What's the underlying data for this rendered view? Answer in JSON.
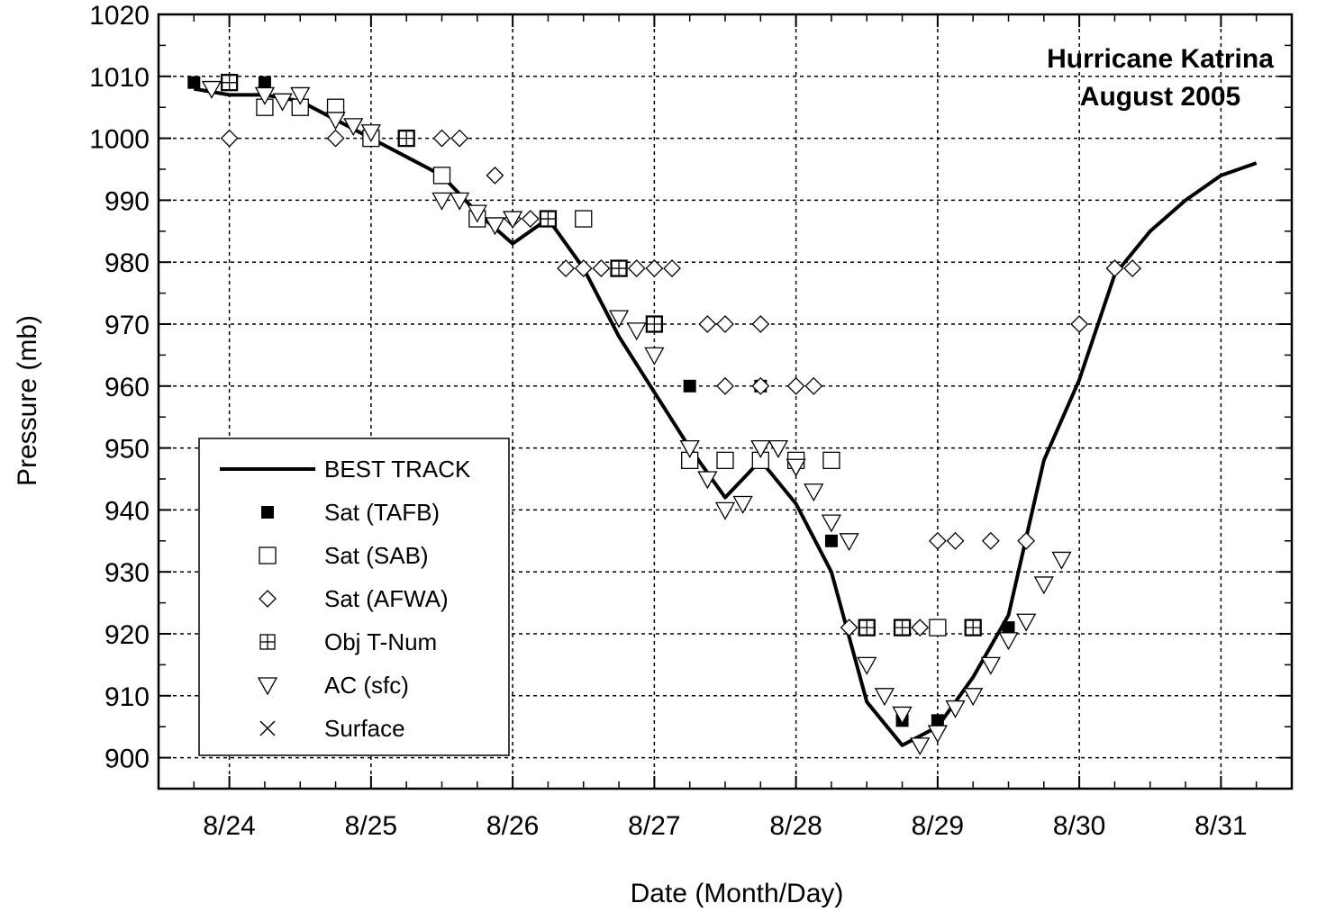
{
  "chart_data": {
    "type": "scatter",
    "title": "Hurricane Katrina",
    "subtitle": "August 2005",
    "xlabel": "Date (Month/Day)",
    "ylabel": "Pressure (mb)",
    "xlim": [
      "8/23 12:00",
      "8/31 12:00"
    ],
    "ylim": [
      895,
      1020
    ],
    "x_tick_labels": [
      "8/24",
      "8/25",
      "8/26",
      "8/27",
      "8/28",
      "8/29",
      "8/30",
      "8/31"
    ],
    "y_tick_labels": [
      "900",
      "910",
      "920",
      "930",
      "940",
      "950",
      "960",
      "970",
      "980",
      "990",
      "1000",
      "1010",
      "1020"
    ],
    "grid": true,
    "legend_position": "bottom-left",
    "series": [
      {
        "name": "BEST TRACK",
        "marker": "line",
        "points": [
          [
            "8/23 18:00",
            1008
          ],
          [
            "8/24 00:00",
            1007
          ],
          [
            "8/24 06:00",
            1007
          ],
          [
            "8/24 12:00",
            1006
          ],
          [
            "8/24 18:00",
            1003
          ],
          [
            "8/25 00:00",
            1000
          ],
          [
            "8/25 06:00",
            997
          ],
          [
            "8/25 12:00",
            994
          ],
          [
            "8/25 18:00",
            988
          ],
          [
            "8/26 00:00",
            983
          ],
          [
            "8/26 06:00",
            987
          ],
          [
            "8/26 12:00",
            979
          ],
          [
            "8/26 18:00",
            968
          ],
          [
            "8/27 00:00",
            959
          ],
          [
            "8/27 06:00",
            950
          ],
          [
            "8/27 12:00",
            942
          ],
          [
            "8/27 18:00",
            948
          ],
          [
            "8/28 00:00",
            941
          ],
          [
            "8/28 06:00",
            930
          ],
          [
            "8/28 12:00",
            909
          ],
          [
            "8/28 18:00",
            902
          ],
          [
            "8/29 00:00",
            905
          ],
          [
            "8/29 06:00",
            913
          ],
          [
            "8/29 12:00",
            923
          ],
          [
            "8/29 18:00",
            948
          ],
          [
            "8/30 00:00",
            961
          ],
          [
            "8/30 06:00",
            978
          ],
          [
            "8/30 12:00",
            985
          ],
          [
            "8/30 18:00",
            990
          ],
          [
            "8/31 00:00",
            994
          ],
          [
            "8/31 06:00",
            996
          ]
        ]
      },
      {
        "name": "Sat (TAFB)",
        "marker": "filled-square",
        "points": [
          [
            "8/23 18:00",
            1009
          ],
          [
            "8/24 00:00",
            1009
          ],
          [
            "8/24 06:00",
            1009
          ],
          [
            "8/25 06:00",
            1000
          ],
          [
            "8/25 18:00",
            987
          ],
          [
            "8/26 06:00",
            987
          ],
          [
            "8/27 00:00",
            970
          ],
          [
            "8/27 06:00",
            960
          ],
          [
            "8/27 18:00",
            960
          ],
          [
            "8/28 06:00",
            935
          ],
          [
            "8/28 12:00",
            921
          ],
          [
            "8/28 18:00",
            906
          ],
          [
            "8/29 00:00",
            906
          ],
          [
            "8/29 06:00",
            921
          ],
          [
            "8/29 12:00",
            921
          ]
        ]
      },
      {
        "name": "Sat (SAB)",
        "marker": "open-square",
        "points": [
          [
            "8/24 00:00",
            1009
          ],
          [
            "8/24 06:00",
            1005
          ],
          [
            "8/24 12:00",
            1005
          ],
          [
            "8/24 18:00",
            1005
          ],
          [
            "8/25 00:00",
            1000
          ],
          [
            "8/25 06:00",
            1000
          ],
          [
            "8/25 12:00",
            994
          ],
          [
            "8/25 18:00",
            987
          ],
          [
            "8/26 06:00",
            987
          ],
          [
            "8/26 12:00",
            987
          ],
          [
            "8/26 18:00",
            979
          ],
          [
            "8/27 00:00",
            970
          ],
          [
            "8/27 06:00",
            948
          ],
          [
            "8/27 12:00",
            948
          ],
          [
            "8/27 18:00",
            948
          ],
          [
            "8/28 00:00",
            948
          ],
          [
            "8/28 06:00",
            948
          ],
          [
            "8/28 12:00",
            921
          ],
          [
            "8/28 18:00",
            921
          ],
          [
            "8/29 00:00",
            921
          ],
          [
            "8/29 06:00",
            921
          ]
        ]
      },
      {
        "name": "Sat (AFWA)",
        "marker": "open-diamond",
        "points": [
          [
            "8/24 00:00",
            1000
          ],
          [
            "8/24 18:00",
            1000
          ],
          [
            "8/25 06:00",
            1000
          ],
          [
            "8/25 12:00",
            1000
          ],
          [
            "8/25 15:00",
            1000
          ],
          [
            "8/25 21:00",
            994
          ],
          [
            "8/26 00:00",
            987
          ],
          [
            "8/26 03:00",
            987
          ],
          [
            "8/26 09:00",
            979
          ],
          [
            "8/26 12:00",
            979
          ],
          [
            "8/26 15:00",
            979
          ],
          [
            "8/26 21:00",
            979
          ],
          [
            "8/27 00:00",
            979
          ],
          [
            "8/27 03:00",
            979
          ],
          [
            "8/27 09:00",
            970
          ],
          [
            "8/27 12:00",
            970
          ],
          [
            "8/27 18:00",
            970
          ],
          [
            "8/27 12:00",
            960
          ],
          [
            "8/27 18:00",
            960
          ],
          [
            "8/28 00:00",
            960
          ],
          [
            "8/28 03:00",
            960
          ],
          [
            "8/28 09:00",
            921
          ],
          [
            "8/28 12:00",
            921
          ],
          [
            "8/28 18:00",
            921
          ],
          [
            "8/28 21:00",
            921
          ],
          [
            "8/29 00:00",
            935
          ],
          [
            "8/29 03:00",
            935
          ],
          [
            "8/29 09:00",
            935
          ],
          [
            "8/29 15:00",
            935
          ],
          [
            "8/30 06:00",
            979
          ],
          [
            "8/30 09:00",
            979
          ],
          [
            "8/30 00:00",
            970
          ]
        ]
      },
      {
        "name": "Obj T-Num",
        "marker": "crossed-square",
        "points": [
          [
            "8/24 00:00",
            1009
          ],
          [
            "8/25 06:00",
            1000
          ],
          [
            "8/26 06:00",
            987
          ],
          [
            "8/26 18:00",
            979
          ],
          [
            "8/27 00:00",
            970
          ],
          [
            "8/28 12:00",
            921
          ],
          [
            "8/28 18:00",
            921
          ],
          [
            "8/29 06:00",
            921
          ]
        ]
      },
      {
        "name": "AC (sfc)",
        "marker": "open-triangle-down",
        "points": [
          [
            "8/23 21:00",
            1008
          ],
          [
            "8/24 06:00",
            1007
          ],
          [
            "8/24 09:00",
            1006
          ],
          [
            "8/24 12:00",
            1007
          ],
          [
            "8/24 18:00",
            1003
          ],
          [
            "8/24 21:00",
            1002
          ],
          [
            "8/25 00:00",
            1001
          ],
          [
            "8/25 12:00",
            990
          ],
          [
            "8/25 15:00",
            990
          ],
          [
            "8/25 18:00",
            988
          ],
          [
            "8/25 21:00",
            986
          ],
          [
            "8/26 00:00",
            987
          ],
          [
            "8/26 18:00",
            971
          ],
          [
            "8/26 21:00",
            969
          ],
          [
            "8/27 00:00",
            965
          ],
          [
            "8/27 06:00",
            950
          ],
          [
            "8/27 09:00",
            945
          ],
          [
            "8/27 12:00",
            940
          ],
          [
            "8/27 15:00",
            941
          ],
          [
            "8/27 18:00",
            950
          ],
          [
            "8/27 21:00",
            950
          ],
          [
            "8/28 00:00",
            947
          ],
          [
            "8/28 03:00",
            943
          ],
          [
            "8/28 06:00",
            938
          ],
          [
            "8/28 09:00",
            935
          ],
          [
            "8/28 12:00",
            915
          ],
          [
            "8/28 15:00",
            910
          ],
          [
            "8/28 18:00",
            907
          ],
          [
            "8/28 21:00",
            902
          ],
          [
            "8/29 00:00",
            904
          ],
          [
            "8/29 03:00",
            908
          ],
          [
            "8/29 06:00",
            910
          ],
          [
            "8/29 09:00",
            915
          ],
          [
            "8/29 12:00",
            919
          ],
          [
            "8/29 15:00",
            922
          ],
          [
            "8/29 18:00",
            928
          ],
          [
            "8/29 21:00",
            932
          ]
        ]
      },
      {
        "name": "Surface",
        "marker": "x",
        "points": []
      }
    ]
  }
}
